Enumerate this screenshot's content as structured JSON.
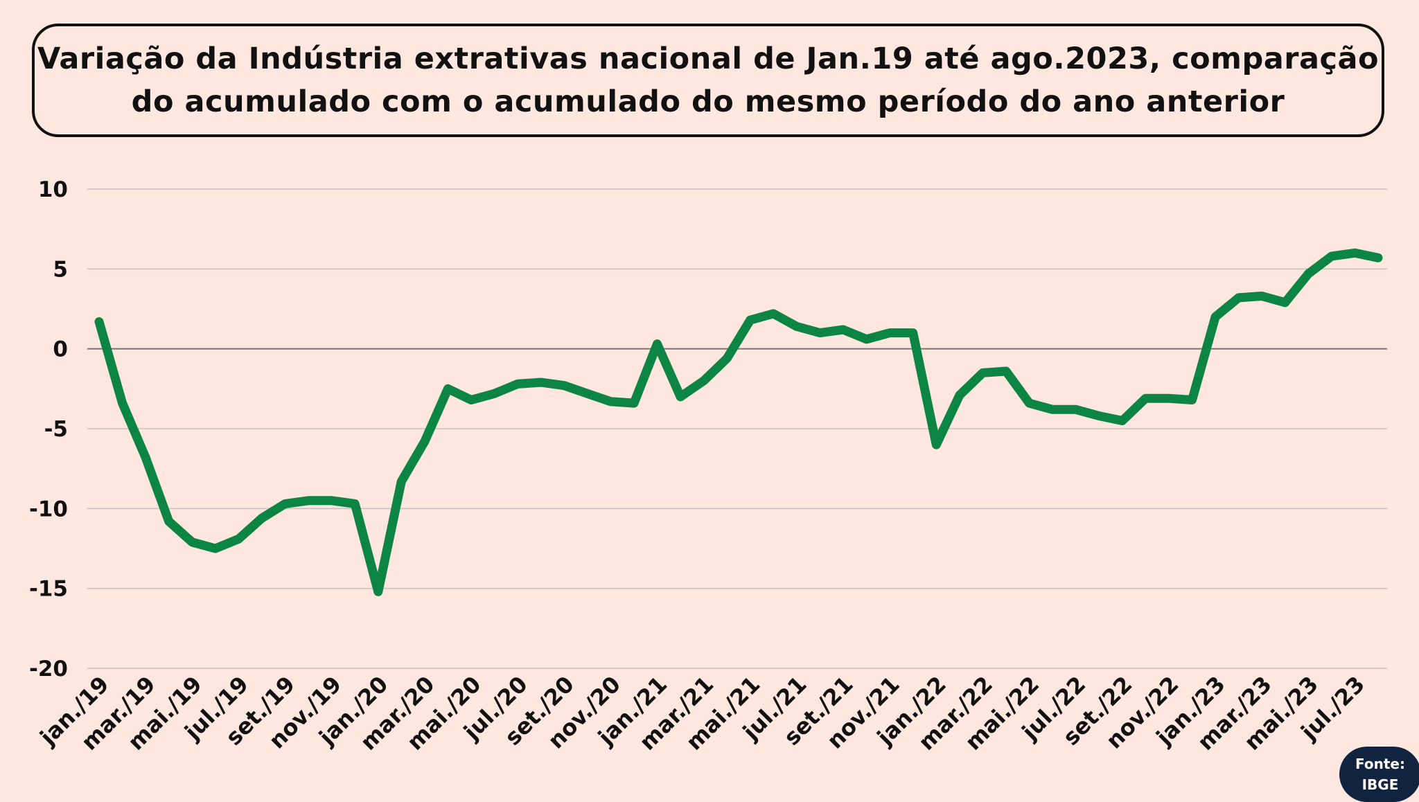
{
  "header": {
    "title_line1": "Variação da Indústria extrativas nacional de Jan.19 até ago.2023, comparação",
    "title_line2": "do acumulado com o acumulado do mesmo período do ano anterior"
  },
  "source": {
    "line1": "Fonte:",
    "line2": "IBGE"
  },
  "colors": {
    "background": "#fde7df",
    "line": "#0c8443",
    "grid": "#c9c2bf",
    "zero_line": "#7a7472",
    "badge": "#10233f"
  },
  "chart_data": {
    "type": "line",
    "title": "",
    "xlabel": "",
    "ylabel": "",
    "ylim": [
      -20,
      10
    ],
    "yticks": [
      10,
      5,
      0,
      -5,
      -10,
      -15,
      -20
    ],
    "grid": true,
    "legend": "none",
    "x": [
      "jan./19",
      "fev./19",
      "mar./19",
      "abr./19",
      "mai./19",
      "jun./19",
      "jul./19",
      "ago./19",
      "set./19",
      "out./19",
      "nov./19",
      "dez./19",
      "jan./20",
      "fev./20",
      "mar./20",
      "abr./20",
      "mai./20",
      "jun./20",
      "jul./20",
      "ago./20",
      "set./20",
      "out./20",
      "nov./20",
      "dez./20",
      "jan./21",
      "fev./21",
      "mar./21",
      "abr./21",
      "mai./21",
      "jun./21",
      "jul./21",
      "ago./21",
      "set./21",
      "out./21",
      "nov./21",
      "dez./21",
      "jan./22",
      "fev./22",
      "mar./22",
      "abr./22",
      "mai./22",
      "jun./22",
      "jul./22",
      "ago./22",
      "set./22",
      "out./22",
      "nov./22",
      "dez./22",
      "jan./23",
      "fev./23",
      "mar./23",
      "abr./23",
      "mai./23",
      "jun./23",
      "jul./23",
      "ago./23"
    ],
    "tick_labels": [
      "jan./19",
      "mar./19",
      "mai./19",
      "jul./19",
      "set./19",
      "nov./19",
      "jan./20",
      "mar./20",
      "mai./20",
      "jul./20",
      "set./20",
      "nov./20",
      "jan./21",
      "mar./21",
      "mai./21",
      "jul./21",
      "set./21",
      "nov./21",
      "jan./22",
      "mar./22",
      "mai./22",
      "jul./22",
      "set./22",
      "nov./22",
      "jan./23",
      "mar./23",
      "mai./23",
      "jul./23"
    ],
    "series": [
      {
        "values": [
          1.7,
          -3.4,
          -6.8,
          -10.8,
          -12.1,
          -12.5,
          -11.9,
          -10.6,
          -9.7,
          -9.5,
          -9.5,
          -9.7,
          -15.2,
          -8.3,
          -5.8,
          -2.5,
          -3.2,
          -2.8,
          -2.2,
          -2.1,
          -2.3,
          -2.8,
          -3.3,
          -3.4,
          0.3,
          -3.0,
          -2.0,
          -0.6,
          1.8,
          2.2,
          1.4,
          1.0,
          1.2,
          0.6,
          1.0,
          1.0,
          -6.0,
          -2.9,
          -1.5,
          -1.4,
          -3.4,
          -3.8,
          -3.8,
          -4.2,
          -4.5,
          -3.1,
          -3.1,
          -3.2,
          2.0,
          3.2,
          3.3,
          2.9,
          4.7,
          5.8,
          6.0,
          5.7
        ]
      }
    ]
  }
}
